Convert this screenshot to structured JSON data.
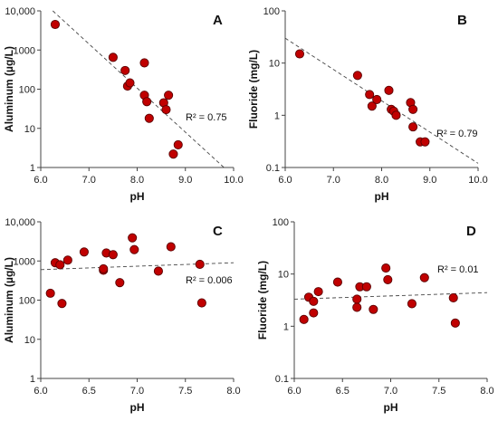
{
  "chart_data": [
    {
      "type": "scatter",
      "panel_label": "A",
      "xlabel": "pH",
      "ylabel": "Aluminum (µg/L)",
      "xlim": [
        6.0,
        10.0
      ],
      "ylim": [
        1,
        10000
      ],
      "yscale": "log",
      "x_ticks": [
        "6.0",
        "7.0",
        "8.0",
        "9.0",
        "10.0"
      ],
      "y_ticks": [
        "1",
        "10",
        "100",
        "1000",
        "10,000"
      ],
      "grid": false,
      "marker_color": "#c00000",
      "r2_label": "R² = 0.75",
      "trendline": {
        "x": [
          6.25,
          9.8
        ],
        "y": [
          10000,
          1
        ]
      },
      "points": [
        {
          "x": 6.3,
          "y": 4500
        },
        {
          "x": 7.5,
          "y": 650
        },
        {
          "x": 7.75,
          "y": 300
        },
        {
          "x": 7.8,
          "y": 120
        },
        {
          "x": 7.85,
          "y": 145
        },
        {
          "x": 8.15,
          "y": 470
        },
        {
          "x": 8.15,
          "y": 70
        },
        {
          "x": 8.2,
          "y": 48
        },
        {
          "x": 8.25,
          "y": 18
        },
        {
          "x": 8.55,
          "y": 45
        },
        {
          "x": 8.6,
          "y": 30
        },
        {
          "x": 8.65,
          "y": 70
        },
        {
          "x": 8.75,
          "y": 2.2
        },
        {
          "x": 8.85,
          "y": 3.8
        }
      ]
    },
    {
      "type": "scatter",
      "panel_label": "B",
      "xlabel": "pH",
      "ylabel": "Fluoride (mg/L)",
      "xlim": [
        6.0,
        10.0
      ],
      "ylim": [
        0.1,
        100
      ],
      "yscale": "log",
      "x_ticks": [
        "6.0",
        "7.0",
        "8.0",
        "9.0",
        "10.0"
      ],
      "y_ticks": [
        "0.1",
        "1",
        "10",
        "100"
      ],
      "grid": false,
      "marker_color": "#c00000",
      "r2_label": "R² = 0.79",
      "trendline": {
        "x": [
          6.0,
          10.0
        ],
        "y": [
          30,
          0.12
        ]
      },
      "points": [
        {
          "x": 6.3,
          "y": 15
        },
        {
          "x": 7.5,
          "y": 5.8
        },
        {
          "x": 7.75,
          "y": 2.5
        },
        {
          "x": 7.8,
          "y": 1.5
        },
        {
          "x": 7.9,
          "y": 2.0
        },
        {
          "x": 8.15,
          "y": 3.0
        },
        {
          "x": 8.2,
          "y": 1.3
        },
        {
          "x": 8.25,
          "y": 1.2
        },
        {
          "x": 8.3,
          "y": 1.0
        },
        {
          "x": 8.6,
          "y": 1.75
        },
        {
          "x": 8.65,
          "y": 1.3
        },
        {
          "x": 8.65,
          "y": 0.6
        },
        {
          "x": 8.8,
          "y": 0.31
        },
        {
          "x": 8.9,
          "y": 0.31
        }
      ]
    },
    {
      "type": "scatter",
      "panel_label": "C",
      "xlabel": "pH",
      "ylabel": "Aluminum (µg/L)",
      "xlim": [
        6.0,
        8.0
      ],
      "ylim": [
        1,
        10000
      ],
      "yscale": "log",
      "x_ticks": [
        "6.0",
        "6.5",
        "7.0",
        "7.5",
        "8.0"
      ],
      "y_ticks": [
        "1",
        "10",
        "100",
        "1000",
        "10,000"
      ],
      "grid": false,
      "marker_color": "#c00000",
      "r2_label": "R² = 0.006",
      "trendline": {
        "x": [
          6.0,
          8.0
        ],
        "y": [
          600,
          900
        ]
      },
      "points": [
        {
          "x": 6.1,
          "y": 150
        },
        {
          "x": 6.15,
          "y": 900
        },
        {
          "x": 6.2,
          "y": 800
        },
        {
          "x": 6.22,
          "y": 82
        },
        {
          "x": 6.28,
          "y": 1050
        },
        {
          "x": 6.45,
          "y": 1700
        },
        {
          "x": 6.65,
          "y": 580
        },
        {
          "x": 6.65,
          "y": 630
        },
        {
          "x": 6.68,
          "y": 1600
        },
        {
          "x": 6.75,
          "y": 1450
        },
        {
          "x": 6.82,
          "y": 280
        },
        {
          "x": 6.95,
          "y": 3900
        },
        {
          "x": 6.97,
          "y": 1950
        },
        {
          "x": 7.22,
          "y": 550
        },
        {
          "x": 7.35,
          "y": 2300
        },
        {
          "x": 7.65,
          "y": 820
        },
        {
          "x": 7.67,
          "y": 85
        }
      ]
    },
    {
      "type": "scatter",
      "panel_label": "D",
      "xlabel": "pH",
      "ylabel": "Fluoride (mg/L)",
      "xlim": [
        6.0,
        8.0
      ],
      "ylim": [
        0.1,
        100
      ],
      "yscale": "log",
      "x_ticks": [
        "6.0",
        "6.5",
        "7.0",
        "7.5",
        "8.0"
      ],
      "y_ticks": [
        "0.1",
        "1",
        "10",
        "100"
      ],
      "grid": false,
      "marker_color": "#c00000",
      "r2_label": "R² = 0.01",
      "trendline": {
        "x": [
          6.0,
          8.0
        ],
        "y": [
          3.3,
          4.4
        ]
      },
      "points": [
        {
          "x": 6.1,
          "y": 1.35
        },
        {
          "x": 6.15,
          "y": 3.6
        },
        {
          "x": 6.2,
          "y": 1.8
        },
        {
          "x": 6.2,
          "y": 3.0
        },
        {
          "x": 6.25,
          "y": 4.6
        },
        {
          "x": 6.45,
          "y": 7.0
        },
        {
          "x": 6.65,
          "y": 3.3
        },
        {
          "x": 6.65,
          "y": 2.3
        },
        {
          "x": 6.68,
          "y": 5.7
        },
        {
          "x": 6.75,
          "y": 5.7
        },
        {
          "x": 6.82,
          "y": 2.1
        },
        {
          "x": 6.95,
          "y": 13
        },
        {
          "x": 6.97,
          "y": 7.8
        },
        {
          "x": 7.22,
          "y": 2.7
        },
        {
          "x": 7.35,
          "y": 8.5
        },
        {
          "x": 7.65,
          "y": 3.5
        },
        {
          "x": 7.67,
          "y": 1.15
        }
      ]
    }
  ]
}
